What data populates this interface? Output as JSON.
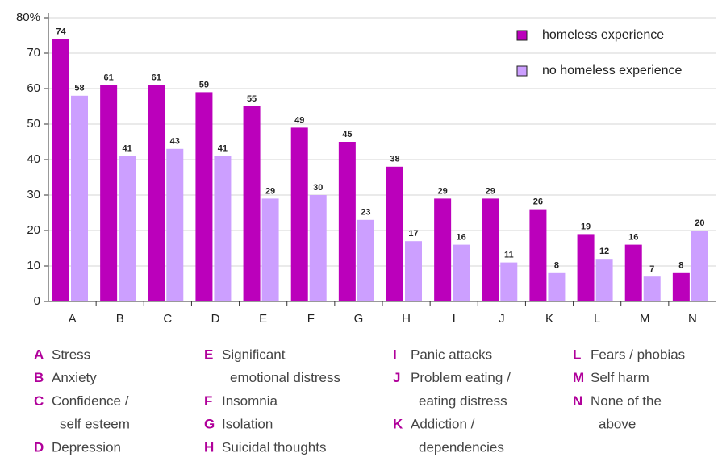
{
  "chart_data": {
    "type": "bar",
    "categories": [
      "A",
      "B",
      "C",
      "D",
      "E",
      "F",
      "G",
      "H",
      "I",
      "J",
      "K",
      "L",
      "M",
      "N"
    ],
    "series": [
      {
        "name": "homeless experience",
        "color": "#bb00bb",
        "values": [
          74,
          61,
          61,
          59,
          55,
          49,
          45,
          38,
          29,
          29,
          26,
          19,
          16,
          8
        ]
      },
      {
        "name": "no homeless experience",
        "color": "#cc9fff",
        "values": [
          58,
          41,
          43,
          41,
          29,
          30,
          23,
          17,
          16,
          11,
          8,
          12,
          7,
          20
        ]
      }
    ],
    "ylim": [
      0,
      80
    ],
    "yticks": [
      0,
      10,
      20,
      30,
      40,
      50,
      60,
      70,
      {
        "value": 80,
        "label": "80%"
      }
    ],
    "grid": true,
    "legend": "top-right",
    "key": [
      {
        "letter": "A",
        "lines": [
          "Stress"
        ]
      },
      {
        "letter": "B",
        "lines": [
          "Anxiety"
        ]
      },
      {
        "letter": "C",
        "lines": [
          "Confidence /",
          "self esteem"
        ]
      },
      {
        "letter": "D",
        "lines": [
          "Depression"
        ]
      },
      {
        "letter": "E",
        "lines": [
          "Significant",
          "emotional distress"
        ]
      },
      {
        "letter": "F",
        "lines": [
          "Insomnia"
        ]
      },
      {
        "letter": "G",
        "lines": [
          "Isolation"
        ]
      },
      {
        "letter": "H",
        "lines": [
          "Suicidal thoughts"
        ]
      },
      {
        "letter": "I",
        "lines": [
          "Panic attacks"
        ]
      },
      {
        "letter": "J",
        "lines": [
          "Problem eating /",
          "eating distress"
        ]
      },
      {
        "letter": "K",
        "lines": [
          "Addiction /",
          "dependencies"
        ]
      },
      {
        "letter": "L",
        "lines": [
          "Fears / phobias"
        ]
      },
      {
        "letter": "M",
        "lines": [
          "Self harm"
        ]
      },
      {
        "letter": "N",
        "lines": [
          "None of the",
          "above"
        ]
      }
    ]
  }
}
